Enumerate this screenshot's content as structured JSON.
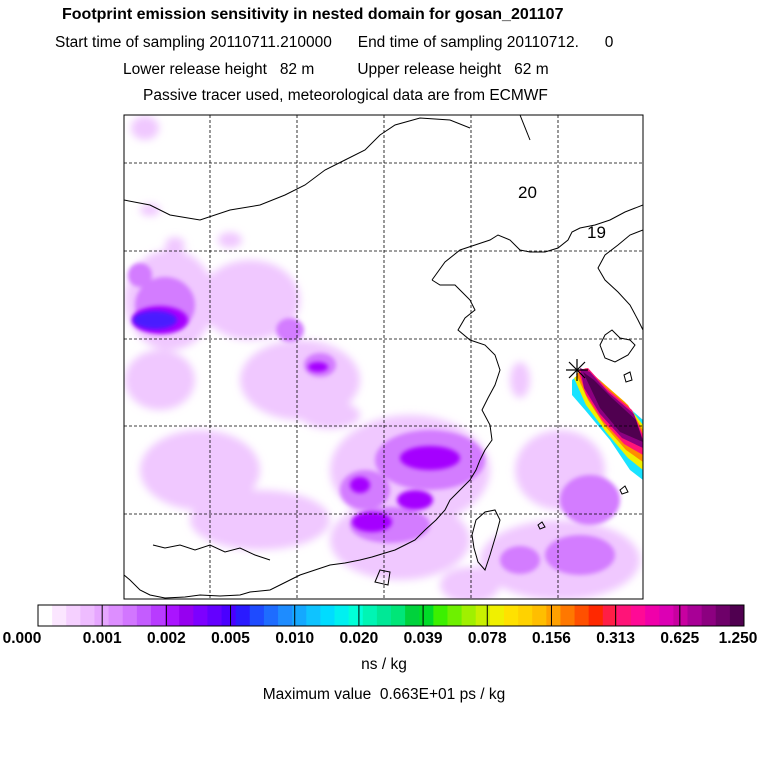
{
  "header": {
    "title": "Footprint emission sensitivity in nested domain for gosan_201107",
    "sampling_line": "Start time of sampling 20110711.210000      End time of sampling 20110712.      0",
    "release_line": "Lower release height   82 m          Upper release height   62 m",
    "tracer_line": "Passive tracer used, meteorological data are from ECMWF"
  },
  "map": {
    "annotations": [
      "20",
      "19"
    ],
    "colors": {
      "light": "#f0c8ff",
      "medium": "#d37cff",
      "strong": "#a500ff",
      "blue": "#4a1aff",
      "plume_core": "#5a0060"
    }
  },
  "colorbar": {
    "tick_labels": [
      "0.000",
      "0.001",
      "0.002",
      "0.005",
      "0.010",
      "0.020",
      "0.039",
      "0.078",
      "0.156",
      "0.313",
      "0.625",
      "1.250"
    ],
    "colors": [
      "#ffffff",
      "#fbe6ff",
      "#f5d0ff",
      "#eebcff",
      "#e6a6ff",
      "#dd8eff",
      "#d276ff",
      "#c45cff",
      "#b83bff",
      "#aa14ff",
      "#9600f0",
      "#7d00ff",
      "#6400ff",
      "#4a00ff",
      "#2a1aff",
      "#1e4bff",
      "#1e6cff",
      "#1e8cff",
      "#14a8ff",
      "#0fc3ff",
      "#00dcff",
      "#00f0f0",
      "#00ffd8",
      "#00f5b4",
      "#00e896",
      "#00e678",
      "#00d23c",
      "#00dc28",
      "#3cf000",
      "#6ef000",
      "#a0f000",
      "#c8f000",
      "#f0f000",
      "#ffe100",
      "#ffd200",
      "#ffbe00",
      "#ffa000",
      "#ff7800",
      "#ff5000",
      "#ff2800",
      "#ff1e46",
      "#ff1478",
      "#ff0a96",
      "#f000aa",
      "#dc00b4",
      "#c800a0",
      "#a80096",
      "#8c0080",
      "#6e0069",
      "#500050"
    ],
    "units": "ns / kg"
  },
  "footer": {
    "max_value": "Maximum value  0.663E+01 ps / kg"
  }
}
